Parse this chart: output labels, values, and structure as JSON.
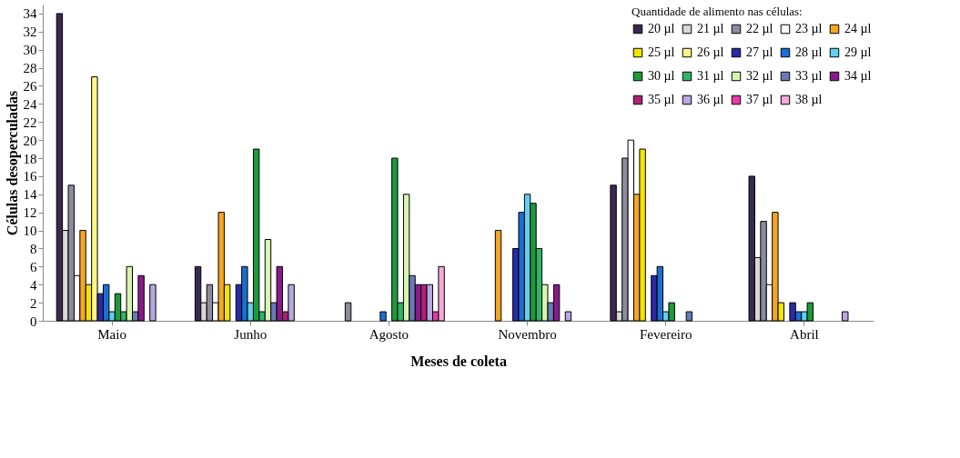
{
  "chart_data": {
    "type": "bar",
    "xlabel": "Meses de coleta",
    "ylabel": "Células desoperculadas",
    "legend_title": "Quantidade de alimento nas células:",
    "categories": [
      "Maio",
      "Junho",
      "Agosto",
      "Novembro",
      "Fevereiro",
      "Abril"
    ],
    "ylim": [
      0,
      35
    ],
    "yticks": [
      0,
      2,
      4,
      6,
      8,
      10,
      12,
      14,
      16,
      18,
      20,
      22,
      24,
      26,
      28,
      30,
      32,
      34
    ],
    "grid": false,
    "legend": "top right",
    "series": [
      {
        "name": "20 µl",
        "color": "#3a2a4f",
        "values": [
          34,
          6,
          0,
          0,
          15,
          16
        ]
      },
      {
        "name": "21 µl",
        "color": "#d8d8d8",
        "values": [
          10,
          2,
          0,
          0,
          1,
          7
        ]
      },
      {
        "name": "22 µl",
        "color": "#8c8c9c",
        "values": [
          15,
          4,
          2,
          0,
          18,
          11
        ]
      },
      {
        "name": "23 µl",
        "color": "#ffffff",
        "values": [
          5,
          2,
          0,
          0,
          20,
          4
        ]
      },
      {
        "name": "24 µl",
        "color": "#f5a623",
        "values": [
          10,
          12,
          0,
          10,
          14,
          12
        ]
      },
      {
        "name": "25 µl",
        "color": "#f5e300",
        "values": [
          4,
          4,
          0,
          0,
          19,
          2
        ]
      },
      {
        "name": "26 µl",
        "color": "#fff68a",
        "values": [
          27,
          0,
          0,
          0,
          0,
          0
        ]
      },
      {
        "name": "27 µl",
        "color": "#2a2aa8",
        "values": [
          3,
          4,
          0,
          8,
          5,
          2
        ]
      },
      {
        "name": "28 µl",
        "color": "#1a6fd0",
        "values": [
          4,
          6,
          1,
          12,
          6,
          1
        ]
      },
      {
        "name": "29 µl",
        "color": "#5fd0f0",
        "values": [
          1,
          2,
          0,
          14,
          1,
          1
        ]
      },
      {
        "name": "30 µl",
        "color": "#1e9a3a",
        "values": [
          3,
          19,
          18,
          13,
          2,
          2
        ]
      },
      {
        "name": "31 µl",
        "color": "#2fb56a",
        "values": [
          1,
          1,
          2,
          8,
          0,
          0
        ]
      },
      {
        "name": "32 µl",
        "color": "#d8f5b0",
        "values": [
          6,
          9,
          14,
          4,
          0,
          0
        ]
      },
      {
        "name": "33 µl",
        "color": "#6a7ab8",
        "values": [
          1,
          2,
          5,
          2,
          1,
          0
        ]
      },
      {
        "name": "34 µl",
        "color": "#8a1a8a",
        "values": [
          5,
          6,
          4,
          4,
          0,
          0
        ]
      },
      {
        "name": "35 µl",
        "color": "#b0207a",
        "values": [
          0,
          1,
          4,
          0,
          0,
          0
        ]
      },
      {
        "name": "36 µl",
        "color": "#b8a8e0",
        "values": [
          4,
          4,
          4,
          1,
          0,
          1
        ]
      },
      {
        "name": "37 µl",
        "color": "#e83aa8",
        "values": [
          0,
          0,
          1,
          0,
          0,
          0
        ]
      },
      {
        "name": "38 µl",
        "color": "#f5a8d8",
        "values": [
          0,
          0,
          6,
          0,
          0,
          0
        ]
      }
    ]
  }
}
